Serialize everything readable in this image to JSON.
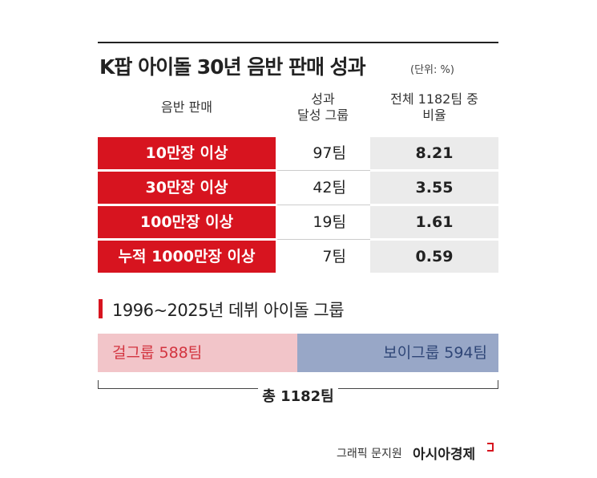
{
  "header": {
    "title": "K팝 아이돌 30년 음반 판매 성과",
    "unit": "(단위: %)"
  },
  "table": {
    "columns": [
      "음반 판매",
      "성과\n달성 그룹",
      "전체 1182팀 중\n비율"
    ],
    "rows": [
      [
        "10만장 이상",
        "97팀",
        "8.21"
      ],
      [
        "30만장 이상",
        "42팀",
        "3.55"
      ],
      [
        "100만장 이상",
        "19팀",
        "1.61"
      ],
      [
        "누적 1000만장 이상",
        "7팀",
        "0.59"
      ]
    ]
  },
  "section": {
    "title": "1996~2025년 데뷔 아이돌 그룹",
    "segments": [
      {
        "label": "걸그룹 588팀",
        "value": 588,
        "color": "#f2c5c9",
        "text_color": "#d3343f"
      },
      {
        "label": "보이그룹 594팀",
        "value": 594,
        "color": "#98a7c7",
        "text_color": "#2f4677"
      }
    ],
    "total": "총 1182팀"
  },
  "footer": {
    "credit": "그래픽 문지원",
    "source": "아시아경제"
  }
}
